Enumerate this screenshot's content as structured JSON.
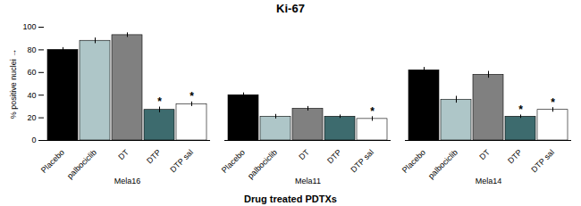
{
  "chart_data": {
    "type": "bar",
    "title": "Ki-67",
    "xlabel": "Drug treated PDTXs",
    "ylabel": "% positive nuclei",
    "categories": [
      "Mela16",
      "Mela11",
      "Mela14"
    ],
    "series": [
      {
        "name": "Placebo",
        "color": "#000000",
        "values": [
          80,
          40,
          62
        ],
        "errors": [
          2,
          2,
          2.5
        ],
        "significant": [
          false,
          false,
          false
        ]
      },
      {
        "name": "palbociclib",
        "color": "#aec6c8",
        "values": [
          88,
          21,
          36
        ],
        "errors": [
          2.5,
          2,
          3
        ],
        "significant": [
          false,
          false,
          false
        ]
      },
      {
        "name": "DT",
        "color": "#808080",
        "values": [
          93,
          28,
          58
        ],
        "errors": [
          2,
          2,
          3
        ],
        "significant": [
          false,
          false,
          false
        ]
      },
      {
        "name": "DTP",
        "color": "#3d6b6e",
        "values": [
          27,
          21,
          21
        ],
        "errors": [
          2.5,
          1.5,
          1.5
        ],
        "significant": [
          true,
          false,
          true
        ]
      },
      {
        "name": "DTP sal",
        "color": "#ffffff",
        "values": [
          32,
          19,
          27
        ],
        "errors": [
          2,
          2,
          2
        ],
        "significant": [
          true,
          true,
          true
        ]
      }
    ],
    "annotation": "*",
    "ylim": [
      0,
      100
    ],
    "yticks": [
      0,
      20,
      40,
      60,
      80,
      100
    ],
    "grid": false
  }
}
